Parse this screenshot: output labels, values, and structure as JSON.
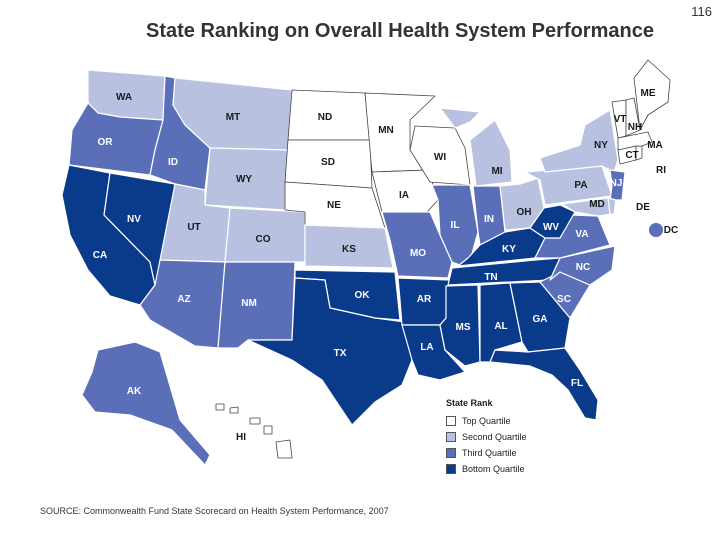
{
  "page_number": "116",
  "title": "State Ranking on Overall Health System Performance",
  "source": "SOURCE: Commonwealth Fund State Scorecard on Health System Performance, 2007",
  "legend": {
    "title": "State Rank",
    "items": [
      {
        "label": "Top Quartile",
        "color": "#ffffff"
      },
      {
        "label": "Second Quartile",
        "color": "#b8c1e0"
      },
      {
        "label": "Third Quartile",
        "color": "#5a6fb8"
      },
      {
        "label": "Bottom Quartile",
        "color": "#0a3a8a"
      }
    ]
  },
  "colors": {
    "top": "#ffffff",
    "second": "#b8c1e0",
    "third": "#5a6fb8",
    "bottom": "#0a3a8a",
    "border": "#ffffff"
  },
  "states": [
    {
      "abbr": "WA",
      "quartile": "second"
    },
    {
      "abbr": "OR",
      "quartile": "third"
    },
    {
      "abbr": "CA",
      "quartile": "bottom"
    },
    {
      "abbr": "NV",
      "quartile": "bottom"
    },
    {
      "abbr": "ID",
      "quartile": "third"
    },
    {
      "abbr": "MT",
      "quartile": "second"
    },
    {
      "abbr": "WY",
      "quartile": "second"
    },
    {
      "abbr": "UT",
      "quartile": "second"
    },
    {
      "abbr": "CO",
      "quartile": "second"
    },
    {
      "abbr": "AZ",
      "quartile": "third"
    },
    {
      "abbr": "NM",
      "quartile": "third"
    },
    {
      "abbr": "ND",
      "quartile": "top"
    },
    {
      "abbr": "SD",
      "quartile": "top"
    },
    {
      "abbr": "NE",
      "quartile": "top"
    },
    {
      "abbr": "KS",
      "quartile": "second"
    },
    {
      "abbr": "OK",
      "quartile": "bottom"
    },
    {
      "abbr": "TX",
      "quartile": "bottom"
    },
    {
      "abbr": "MN",
      "quartile": "top"
    },
    {
      "abbr": "IA",
      "quartile": "top"
    },
    {
      "abbr": "MO",
      "quartile": "third"
    },
    {
      "abbr": "AR",
      "quartile": "bottom"
    },
    {
      "abbr": "LA",
      "quartile": "bottom"
    },
    {
      "abbr": "WI",
      "quartile": "top"
    },
    {
      "abbr": "IL",
      "quartile": "third"
    },
    {
      "abbr": "MI",
      "quartile": "second"
    },
    {
      "abbr": "IN",
      "quartile": "third"
    },
    {
      "abbr": "OH",
      "quartile": "second"
    },
    {
      "abbr": "KY",
      "quartile": "bottom"
    },
    {
      "abbr": "TN",
      "quartile": "bottom"
    },
    {
      "abbr": "MS",
      "quartile": "bottom"
    },
    {
      "abbr": "AL",
      "quartile": "bottom"
    },
    {
      "abbr": "GA",
      "quartile": "bottom"
    },
    {
      "abbr": "FL",
      "quartile": "bottom"
    },
    {
      "abbr": "SC",
      "quartile": "third"
    },
    {
      "abbr": "NC",
      "quartile": "third"
    },
    {
      "abbr": "VA",
      "quartile": "third"
    },
    {
      "abbr": "WV",
      "quartile": "bottom"
    },
    {
      "abbr": "PA",
      "quartile": "second"
    },
    {
      "abbr": "NY",
      "quartile": "second"
    },
    {
      "abbr": "NJ",
      "quartile": "third"
    },
    {
      "abbr": "DE",
      "quartile": "second"
    },
    {
      "abbr": "MD",
      "quartile": "second"
    },
    {
      "abbr": "DC",
      "quartile": "third"
    },
    {
      "abbr": "CT",
      "quartile": "top"
    },
    {
      "abbr": "RI",
      "quartile": "top"
    },
    {
      "abbr": "MA",
      "quartile": "top"
    },
    {
      "abbr": "VT",
      "quartile": "top"
    },
    {
      "abbr": "NH",
      "quartile": "top"
    },
    {
      "abbr": "ME",
      "quartile": "top"
    },
    {
      "abbr": "AK",
      "quartile": "third"
    },
    {
      "abbr": "HI",
      "quartile": "top"
    }
  ]
}
